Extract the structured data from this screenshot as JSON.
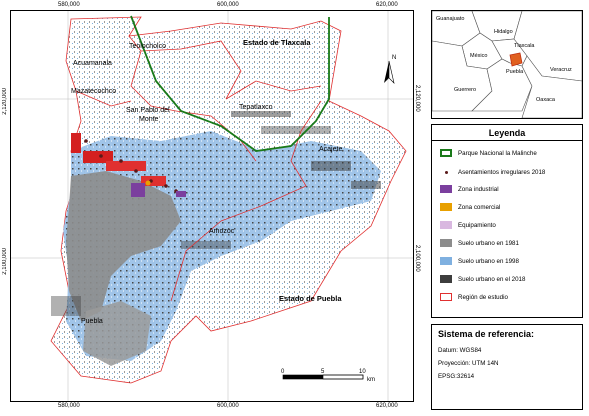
{
  "coords": {
    "top": [
      "580,000",
      "600,000",
      "620,000"
    ],
    "bottom": [
      "580,000",
      "600,000",
      "620,000"
    ],
    "left": [
      "2,120,000",
      "2,100,000"
    ],
    "right": [
      "2,120,000",
      "2,100,000"
    ]
  },
  "places": {
    "teolocholco": "Teolocholco",
    "acuamanala": "Acuamanala",
    "mazatecochco": "Mazatecochco",
    "san_pablo_line1": "San Pablo del",
    "san_pablo_line2": "Monte",
    "tepatlaxco": "Tepatlaxco",
    "acajete": "Acajete",
    "amozoc": "Amozoc",
    "puebla": "Puebla",
    "estado_tlaxcala": "Estado de Tlaxcala",
    "estado_puebla": "Estado de Puebla"
  },
  "north_label": "N",
  "scale": {
    "ticks": [
      "0",
      "5",
      "10"
    ],
    "unit": "km"
  },
  "inset": {
    "labels": [
      "Guanajuato",
      "Hidalgo",
      "Tlaxcala",
      "México",
      "Veracruz",
      "Puebla",
      "Guerrero",
      "Oaxaca"
    ]
  },
  "legend": {
    "title": "Leyenda",
    "items": [
      {
        "label": "Parque Nacional la Malinche",
        "kind": "outline",
        "color": "#1a7a1a"
      },
      {
        "label": "Asentamientos irregulares 2018",
        "kind": "dots",
        "color": "#5a1a1a"
      },
      {
        "label": "Zona industrial",
        "kind": "fill",
        "color": "#7b3f9e"
      },
      {
        "label": "Zona comercial",
        "kind": "fill",
        "color": "#e8a000"
      },
      {
        "label": "Equipamiento",
        "kind": "fill",
        "color": "#d9b8e0"
      },
      {
        "label": "Suelo urbano en 1981",
        "kind": "fill",
        "color": "#8c8c8c"
      },
      {
        "label": "Suelo urbano en 1998",
        "kind": "fill",
        "color": "#7fb0e0"
      },
      {
        "label": "Suelo urbano en el 2018",
        "kind": "fill",
        "color": "#3d3d3d"
      },
      {
        "label": "Región de estudio",
        "kind": "outline",
        "color": "#e03030"
      }
    ]
  },
  "reference": {
    "title": "Sistema de referencia:",
    "datum": "Datum: WGS84",
    "projection": "Proyección: UTM 14N",
    "epsg": "EPSG:32614"
  }
}
